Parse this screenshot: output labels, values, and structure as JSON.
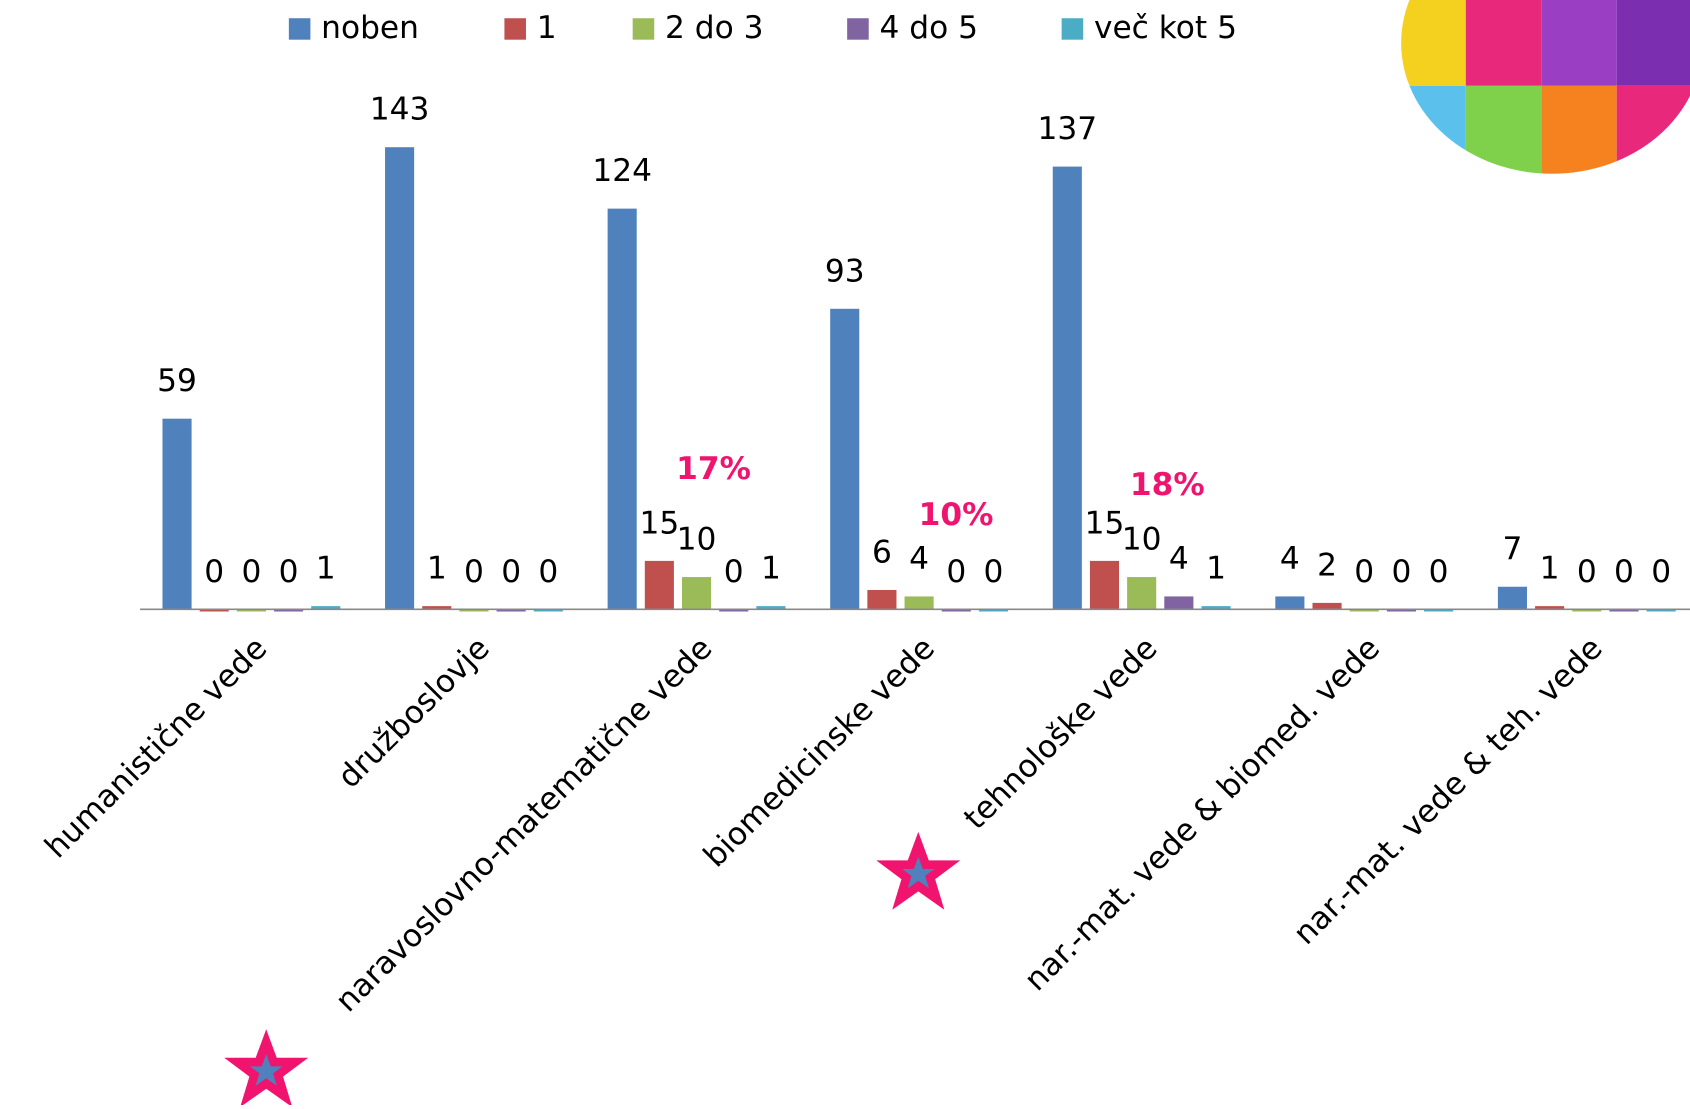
{
  "chart_data": {
    "type": "bar",
    "categories": [
      "humanistične vede",
      "družboslovje",
      "naravoslovno-matematične vede",
      "biomedicinske vede",
      "tehnološke vede",
      "nar.-mat. vede & biomed. vede",
      "nar.-mat. vede & teh. vede"
    ],
    "series": [
      {
        "name": "noben",
        "color": "#4f81bd",
        "values": [
          59,
          143,
          124,
          93,
          137,
          4,
          7
        ]
      },
      {
        "name": "1",
        "color": "#c0504d",
        "values": [
          0,
          1,
          15,
          6,
          15,
          2,
          1
        ]
      },
      {
        "name": "2 do 3",
        "color": "#9bbb59",
        "values": [
          0,
          0,
          10,
          4,
          10,
          0,
          0
        ]
      },
      {
        "name": "4 do 5",
        "color": "#8064a2",
        "values": [
          0,
          0,
          0,
          0,
          4,
          0,
          0
        ]
      },
      {
        "name": "več kot 5",
        "color": "#4bacc6",
        "values": [
          1,
          0,
          1,
          0,
          1,
          0,
          0
        ]
      }
    ],
    "ylim": [
      0,
      160
    ],
    "annotations": [
      "17%",
      "10%",
      "18%"
    ],
    "annotation_color": "#f0146e"
  }
}
